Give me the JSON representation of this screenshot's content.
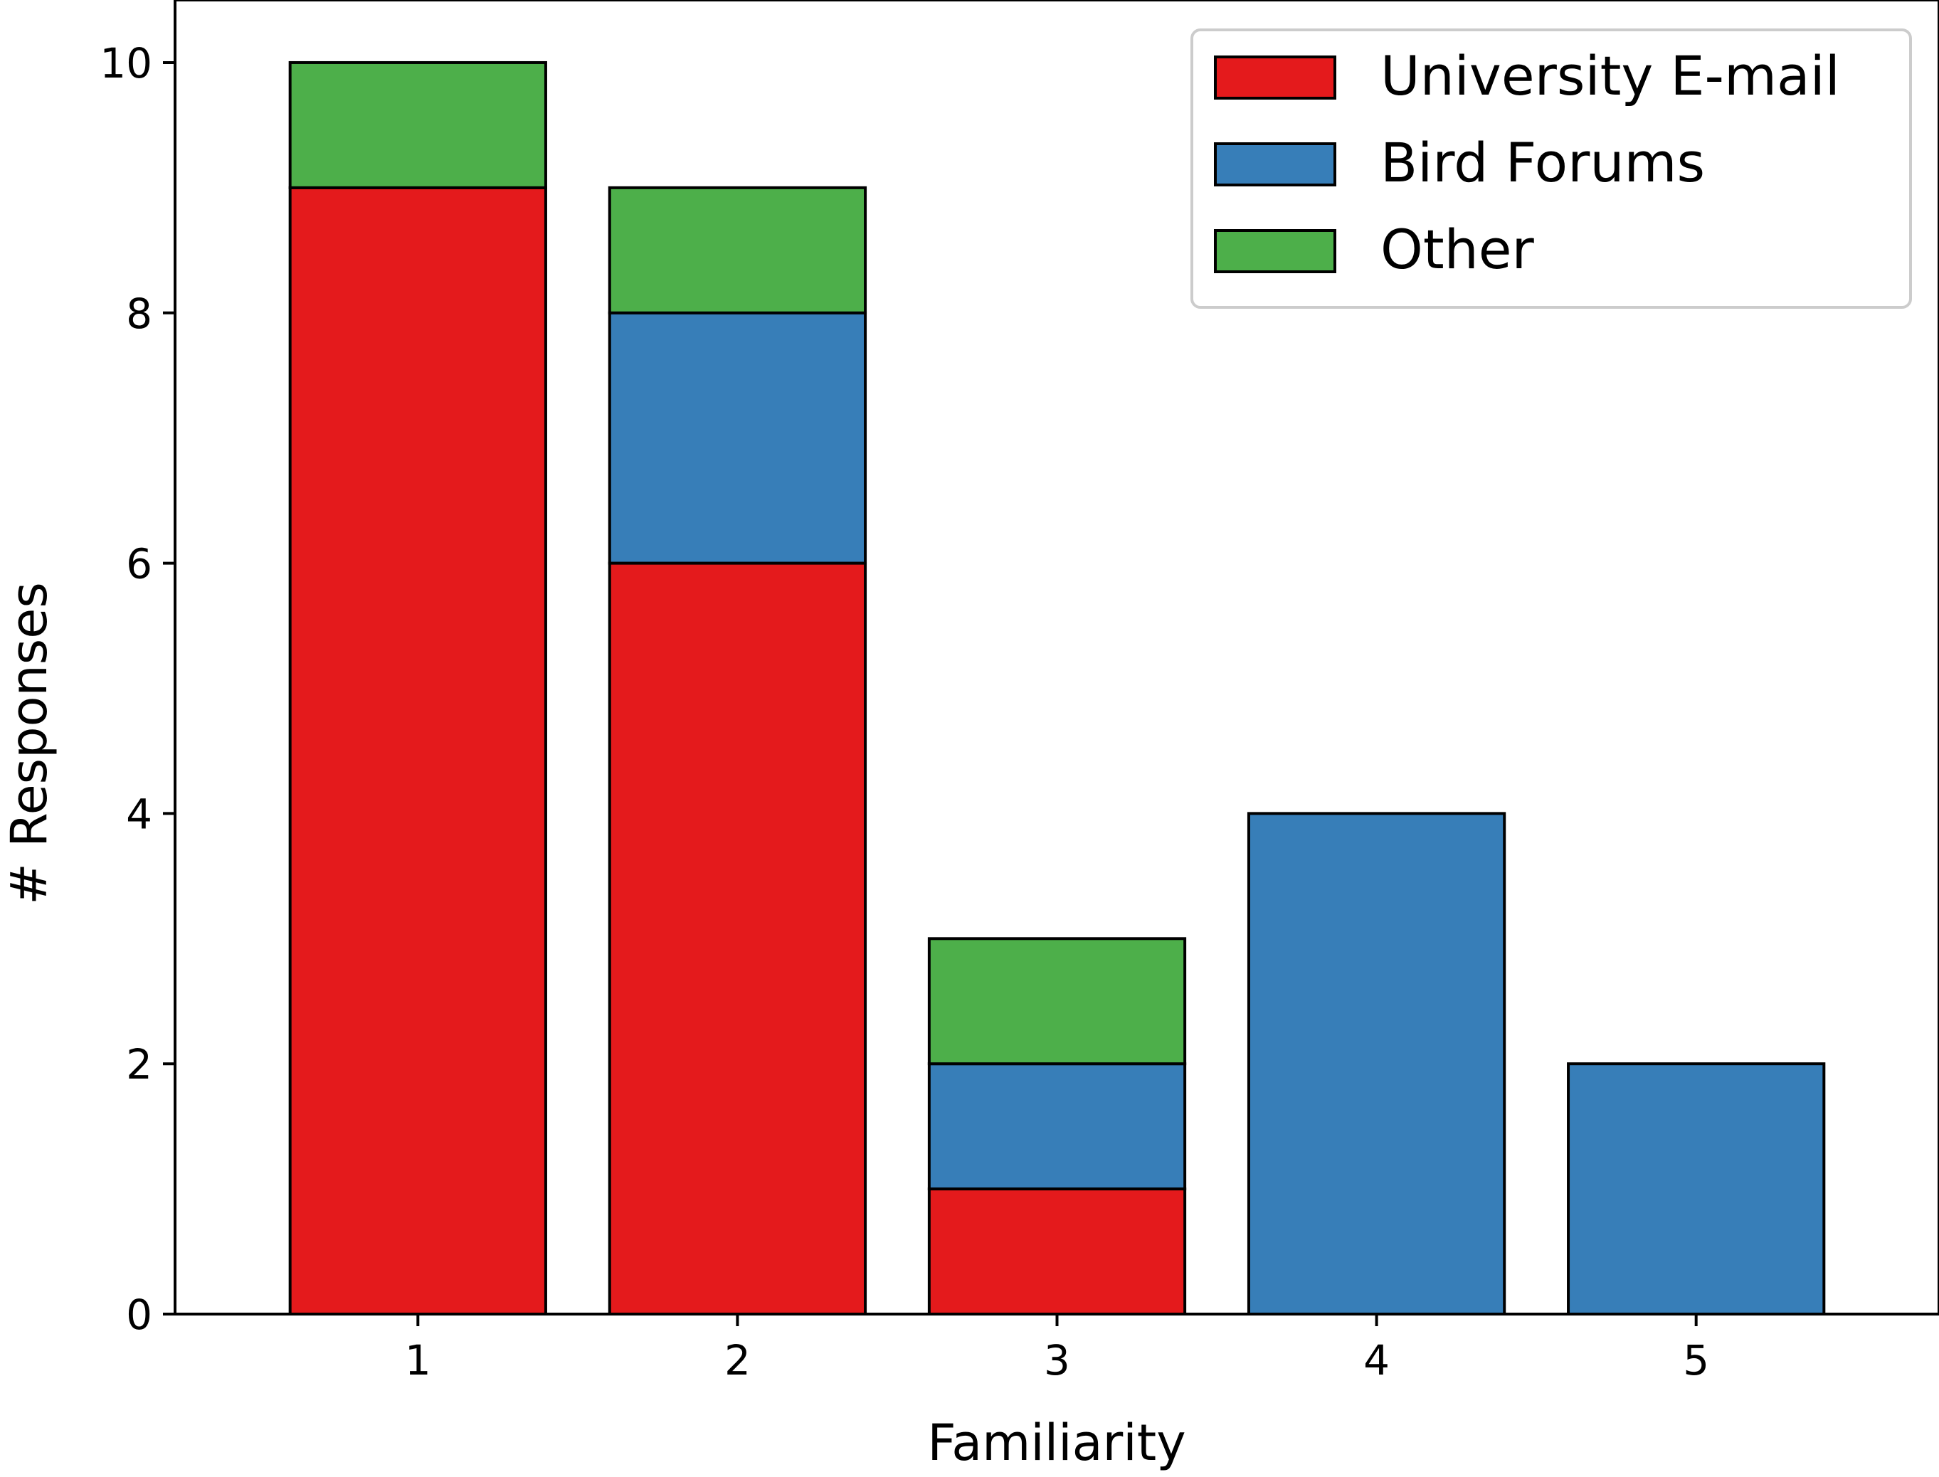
{
  "chart_data": {
    "type": "bar",
    "stacked": true,
    "categories": [
      "1",
      "2",
      "3",
      "4",
      "5"
    ],
    "series": [
      {
        "name": "University E-mail",
        "color": "#e41a1c",
        "values": [
          9,
          6,
          1,
          0,
          0
        ]
      },
      {
        "name": "Bird Forums",
        "color": "#377eb8",
        "values": [
          0,
          2,
          1,
          4,
          2
        ]
      },
      {
        "name": "Other",
        "color": "#4daf4a",
        "values": [
          1,
          1,
          1,
          0,
          0
        ]
      }
    ],
    "title": "",
    "xlabel": "Familiarity",
    "ylabel": "# Responses",
    "ylim": [
      0,
      10.5
    ],
    "yticks": [
      0,
      2,
      4,
      6,
      8,
      10
    ],
    "grid": false,
    "legend_position": "top-right"
  }
}
